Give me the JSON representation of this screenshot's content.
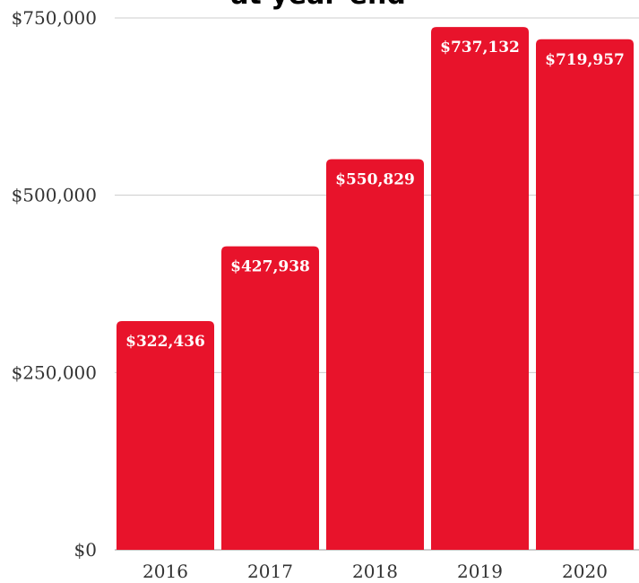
{
  "chart_data": {
    "type": "bar",
    "title": "at year-end",
    "categories": [
      "2016",
      "2017",
      "2018",
      "2019",
      "2020"
    ],
    "values": [
      322436,
      427938,
      550829,
      737132,
      719957
    ],
    "value_labels": [
      "$322,436",
      "$427,938",
      "$550,829",
      "$737,132",
      "$719,957"
    ],
    "ylim": [
      0,
      750000
    ],
    "yticks": [
      0,
      250000,
      500000,
      750000
    ],
    "ytick_labels": [
      "$0",
      "$250,000",
      "$500,000",
      "$750,000"
    ],
    "grid": true,
    "bar_color": "#E8132B",
    "grid_color": "#cccccc"
  }
}
